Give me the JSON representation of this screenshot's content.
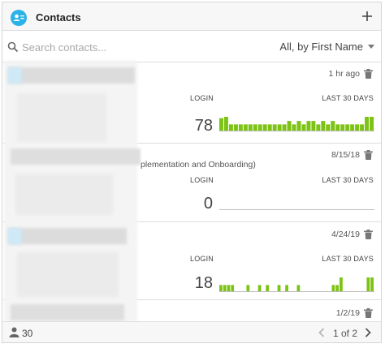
{
  "header": {
    "title": "Contacts",
    "contact_icon": "contact-card-icon",
    "add_icon": "plus-icon"
  },
  "search": {
    "placeholder": "Search contacts...",
    "value": "",
    "icon": "search-icon"
  },
  "sort": {
    "label": "All, by First Name"
  },
  "rows": [
    {
      "date": "1 hr ago",
      "subtitle": "",
      "login_label": "LOGIN",
      "last30_label": "LAST 30 DAYS",
      "login_count": "78",
      "activity": [
        0.9,
        1,
        0.45,
        0.45,
        0.45,
        0.45,
        0.45,
        0.45,
        0.45,
        0.45,
        0.45,
        0.45,
        0.45,
        0.45,
        0.7,
        0.45,
        0.7,
        0.45,
        0.7,
        0.7,
        0.45,
        0.7,
        0.45,
        0.7,
        0.45,
        0.45,
        0.45,
        0.45,
        0.45,
        0.45,
        1,
        1
      ]
    },
    {
      "date": "8/15/18",
      "subtitle": "plementation and Onboarding)",
      "login_label": "LOGIN",
      "last30_label": "LAST 30 DAYS",
      "login_count": "0",
      "activity": []
    },
    {
      "date": "4/24/19",
      "subtitle": "",
      "login_label": "LOGIN",
      "last30_label": "LAST 30 DAYS",
      "login_count": "18",
      "activity": [
        0.45,
        0.45,
        0.45,
        0.45,
        0,
        0,
        0,
        0.45,
        0,
        0,
        0.45,
        0,
        0.45,
        0,
        0,
        0.45,
        0,
        0.45,
        0,
        0,
        0.45,
        0,
        0,
        0,
        0,
        0,
        0,
        0,
        0,
        0.45,
        0.45,
        1,
        0,
        0,
        0,
        0,
        0,
        0,
        1,
        1
      ]
    },
    {
      "date": "1/2/19",
      "subtitle": ""
    }
  ],
  "footer": {
    "count": "30",
    "page": "1 of 2",
    "person_icon": "person-icon",
    "prev_icon": "chevron-left-icon",
    "next_icon": "chevron-right-icon"
  },
  "colors": {
    "accent": "#2bb3e9",
    "activity_bar": "#7dc315"
  }
}
